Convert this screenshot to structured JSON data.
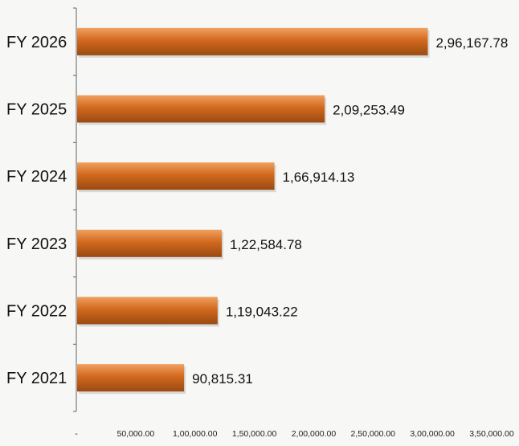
{
  "chart_data": {
    "type": "bar",
    "orientation": "horizontal",
    "categories": [
      "FY 2026",
      "FY 2025",
      "FY 2024",
      "FY 2023",
      "FY 2022",
      "FY 2021"
    ],
    "values": [
      296167.78,
      209253.49,
      166914.13,
      122584.78,
      119043.22,
      90815.31
    ],
    "value_labels": [
      "2,96,167.78",
      "2,09,253.49",
      "1,66,914.13",
      "1,22,584.78",
      "1,19,043.22",
      "90,815.31"
    ],
    "xlim": [
      0,
      350000
    ],
    "x_ticks": [
      0,
      50000,
      100000,
      150000,
      200000,
      250000,
      300000,
      350000
    ],
    "x_tick_labels": [
      "-",
      "50,000.00",
      "1,00,000.00",
      "1,50,000.00",
      "2,00,000.00",
      "2,50,000.00",
      "3,00,000.00",
      "3,50,000.00"
    ],
    "title": "",
    "xlabel": "",
    "ylabel": "",
    "grid": false,
    "legend": "none",
    "bar_color": "#d2691e",
    "bar_highlight": "#f0a060",
    "bar_shadow": "#9a4a12"
  }
}
